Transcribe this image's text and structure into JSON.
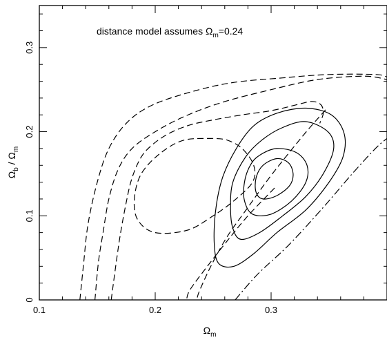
{
  "chart_data": {
    "type": "line",
    "annotation": {
      "prefix": "distance model assumes Ω",
      "sub": "m",
      "suffix": "=0.24"
    },
    "xlabel": {
      "main": "Ω",
      "sub": "m"
    },
    "ylabel": {
      "num": "Ω",
      "num_sub": "b",
      "sep": " / ",
      "den": "Ω",
      "den_sub": "m"
    },
    "xlim": [
      0.1,
      0.4
    ],
    "ylim": [
      0,
      0.35
    ],
    "xticks": [
      0.1,
      0.2,
      0.3
    ],
    "xtick_labels": [
      "0.1",
      "0.2",
      "0.3"
    ],
    "yticks": [
      0,
      0.1,
      0.2,
      0.3
    ],
    "ytick_labels": [
      "0",
      "0.1",
      "0.2",
      "0.3"
    ],
    "x_minor_step": 0.02,
    "y_minor_step": 0.02,
    "grid": false,
    "series": [
      {
        "style": "solid",
        "closed": true,
        "points": [
          [
            0.305,
            0.168
          ],
          [
            0.315,
            0.163
          ],
          [
            0.319,
            0.15
          ],
          [
            0.316,
            0.136
          ],
          [
            0.305,
            0.124
          ],
          [
            0.293,
            0.12
          ],
          [
            0.287,
            0.128
          ],
          [
            0.287,
            0.145
          ],
          [
            0.293,
            0.16
          ]
        ]
      },
      {
        "style": "solid",
        "closed": true,
        "points": [
          [
            0.29,
            0.172
          ],
          [
            0.305,
            0.18
          ],
          [
            0.322,
            0.175
          ],
          [
            0.331,
            0.16
          ],
          [
            0.33,
            0.14
          ],
          [
            0.318,
            0.118
          ],
          [
            0.3,
            0.102
          ],
          [
            0.284,
            0.102
          ],
          [
            0.277,
            0.118
          ],
          [
            0.277,
            0.14
          ],
          [
            0.282,
            0.16
          ]
        ]
      },
      {
        "style": "solid",
        "closed": true,
        "points": [
          [
            0.278,
            0.17
          ],
          [
            0.292,
            0.19
          ],
          [
            0.31,
            0.205
          ],
          [
            0.33,
            0.212
          ],
          [
            0.349,
            0.2
          ],
          [
            0.354,
            0.18
          ],
          [
            0.345,
            0.15
          ],
          [
            0.33,
            0.123
          ],
          [
            0.31,
            0.1
          ],
          [
            0.29,
            0.08
          ],
          [
            0.274,
            0.072
          ],
          [
            0.267,
            0.085
          ],
          [
            0.265,
            0.11
          ],
          [
            0.267,
            0.14
          ]
        ]
      },
      {
        "style": "solid",
        "closed": true,
        "points": [
          [
            0.27,
            0.18
          ],
          [
            0.285,
            0.207
          ],
          [
            0.305,
            0.222
          ],
          [
            0.33,
            0.228
          ],
          [
            0.352,
            0.22
          ],
          [
            0.363,
            0.198
          ],
          [
            0.362,
            0.17
          ],
          [
            0.35,
            0.14
          ],
          [
            0.33,
            0.107
          ],
          [
            0.305,
            0.08
          ],
          [
            0.285,
            0.055
          ],
          [
            0.268,
            0.04
          ],
          [
            0.255,
            0.043
          ],
          [
            0.251,
            0.065
          ],
          [
            0.252,
            0.105
          ],
          [
            0.258,
            0.145
          ]
        ]
      },
      {
        "style": "dashed",
        "closed": false,
        "points": [
          [
            0.303,
            0.133
          ],
          [
            0.28,
            0.1
          ],
          [
            0.262,
            0.07
          ],
          [
            0.245,
            0.04
          ],
          [
            0.23,
            0.012
          ],
          [
            0.227,
            0.0
          ]
        ]
      },
      {
        "style": "dashed",
        "closed": false,
        "points": [
          [
            0.347,
            0.226
          ],
          [
            0.328,
            0.196
          ],
          [
            0.3,
            0.148
          ],
          [
            0.28,
            0.11
          ],
          [
            0.262,
            0.075
          ],
          [
            0.248,
            0.04
          ],
          [
            0.238,
            0.01
          ],
          [
            0.236,
            0.0
          ]
        ]
      },
      {
        "style": "dashed",
        "closed": false,
        "points": [
          [
            0.25,
            0.192
          ],
          [
            0.225,
            0.19
          ],
          [
            0.205,
            0.175
          ],
          [
            0.188,
            0.15
          ],
          [
            0.182,
            0.12
          ],
          [
            0.185,
            0.095
          ],
          [
            0.2,
            0.08
          ],
          [
            0.228,
            0.083
          ],
          [
            0.25,
            0.1
          ],
          [
            0.268,
            0.118
          ],
          [
            0.284,
            0.14
          ],
          [
            0.285,
            0.16
          ],
          [
            0.275,
            0.18
          ],
          [
            0.262,
            0.19
          ],
          [
            0.25,
            0.192
          ]
        ]
      },
      {
        "style": "dashed",
        "closed": false,
        "points": [
          [
            0.162,
            0.0
          ],
          [
            0.169,
            0.07
          ],
          [
            0.175,
            0.116
          ],
          [
            0.18,
            0.145
          ],
          [
            0.188,
            0.17
          ],
          [
            0.198,
            0.185
          ],
          [
            0.212,
            0.198
          ],
          [
            0.23,
            0.208
          ],
          [
            0.25,
            0.214
          ],
          [
            0.275,
            0.22
          ],
          [
            0.3,
            0.225
          ],
          [
            0.322,
            0.232
          ],
          [
            0.335,
            0.236
          ],
          [
            0.343,
            0.232
          ],
          [
            0.345,
            0.222
          ],
          [
            0.342,
            0.21
          ]
        ]
      },
      {
        "style": "dashed",
        "closed": false,
        "points": [
          [
            0.148,
            0.0
          ],
          [
            0.151,
            0.045
          ],
          [
            0.155,
            0.08
          ],
          [
            0.16,
            0.12
          ],
          [
            0.168,
            0.155
          ],
          [
            0.18,
            0.18
          ],
          [
            0.2,
            0.2
          ],
          [
            0.225,
            0.218
          ],
          [
            0.258,
            0.235
          ],
          [
            0.3,
            0.25
          ],
          [
            0.34,
            0.262
          ],
          [
            0.38,
            0.266
          ],
          [
            0.4,
            0.262
          ]
        ]
      },
      {
        "style": "dashed",
        "closed": false,
        "points": [
          [
            0.135,
            0.0
          ],
          [
            0.138,
            0.04
          ],
          [
            0.142,
            0.09
          ],
          [
            0.15,
            0.14
          ],
          [
            0.16,
            0.18
          ],
          [
            0.175,
            0.21
          ],
          [
            0.195,
            0.23
          ],
          [
            0.225,
            0.245
          ],
          [
            0.265,
            0.258
          ],
          [
            0.31,
            0.264
          ],
          [
            0.35,
            0.268
          ],
          [
            0.39,
            0.268
          ],
          [
            0.4,
            0.265
          ]
        ]
      },
      {
        "style": "dashdot",
        "closed": false,
        "points": [
          [
            0.269,
            0.0
          ],
          [
            0.288,
            0.03
          ],
          [
            0.315,
            0.065
          ],
          [
            0.345,
            0.11
          ],
          [
            0.37,
            0.15
          ],
          [
            0.39,
            0.18
          ],
          [
            0.4,
            0.192
          ]
        ]
      }
    ]
  }
}
